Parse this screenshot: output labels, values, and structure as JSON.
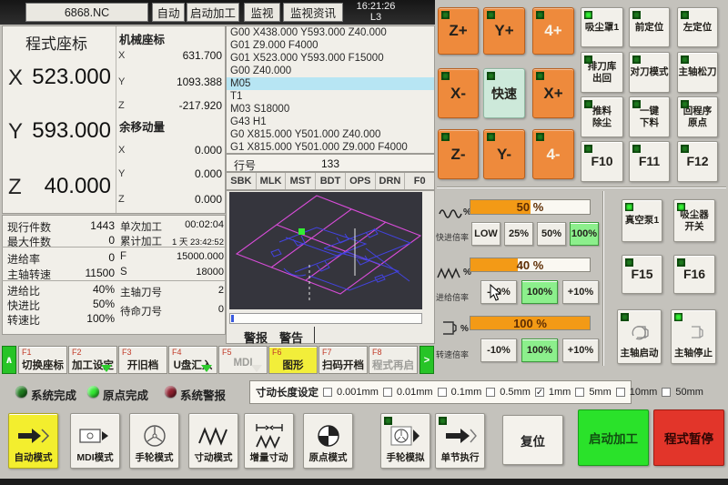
{
  "topbar": {
    "program_name": "6868.NC",
    "mode": "自动",
    "run_state": "启动加工",
    "monitor": "监视",
    "monitor_info": "监视资讯",
    "clock": "16:21:26",
    "line_label": "L3"
  },
  "coords": {
    "program": {
      "title": "程式座标",
      "rows": [
        {
          "axis": "X",
          "value": "523.000"
        },
        {
          "axis": "Y",
          "value": "593.000"
        },
        {
          "axis": "Z",
          "value": "40.000"
        }
      ]
    },
    "machine": {
      "title": "机械座标",
      "rows": [
        {
          "axis": "X",
          "value": "631.700"
        },
        {
          "axis": "Y",
          "value": "1093.388"
        },
        {
          "axis": "Z",
          "value": "-217.920"
        }
      ]
    },
    "remaining": {
      "title": "余移动量",
      "rows": [
        {
          "axis": "X",
          "value": "0.000"
        },
        {
          "axis": "Y",
          "value": "0.000"
        },
        {
          "axis": "Z",
          "value": "0.000"
        }
      ]
    }
  },
  "gcode": {
    "lines": [
      "G00 X438.000 Y593.000 Z40.000",
      "G01 Z9.000 F4000",
      "G01 X523.000 Y593.000 F15000",
      "G00 Z40.000",
      "M05",
      "T1",
      "M03 S18000",
      "G43 H1",
      "G0 X815.000 Y501.000 Z40.000",
      "G1 X815.000 Y501.000 Z9.000 F4000"
    ],
    "line_no_label": "行号",
    "line_no": "133",
    "flags": [
      "SBK",
      "MLK",
      "MST",
      "BDT",
      "OPS",
      "DRN",
      "F0"
    ]
  },
  "stats": {
    "left": [
      {
        "label": "现行件数",
        "value": "1443"
      },
      {
        "label": "最大件数",
        "value": "0"
      },
      {
        "label": "进给率",
        "value": "0"
      },
      {
        "label": "主轴转速",
        "value": "11500"
      },
      {
        "label": "进给比",
        "value": "40%"
      },
      {
        "label": "快进比",
        "value": "50%"
      },
      {
        "label": "转速比",
        "value": "100%"
      }
    ],
    "right": [
      {
        "label": "单次加工",
        "value": "00:02:04"
      },
      {
        "label": "累计加工",
        "value": "1 天 23:42:52"
      },
      {
        "label": "F",
        "value": "15000.000"
      },
      {
        "label": "S",
        "value": "18000"
      },
      {
        "label": "主轴刀号",
        "value": "2"
      },
      {
        "label": "待命刀号",
        "value": "0"
      }
    ]
  },
  "alarm": {
    "tab1": "警报",
    "tab2": "警告"
  },
  "fkeys": {
    "prev": "∧",
    "next": ">",
    "tabs": [
      {
        "fkey": "F1",
        "label": "切换座标"
      },
      {
        "fkey": "F2",
        "label": "加工设定"
      },
      {
        "fkey": "F3",
        "label": "开旧档"
      },
      {
        "fkey": "F4",
        "label": "U盘汇入"
      },
      {
        "fkey": "F5",
        "label": "MDI"
      },
      {
        "fkey": "F6",
        "label": "图形"
      },
      {
        "fkey": "F7",
        "label": "扫码开档"
      },
      {
        "fkey": "F8",
        "label": "程式再启"
      }
    ]
  },
  "leds": [
    {
      "label": "系统完成",
      "color": "#1e7a1e"
    },
    {
      "label": "原点完成",
      "color": "#33e833"
    },
    {
      "label": "系统警报",
      "color": "#8e1f2e"
    }
  ],
  "jog_length": {
    "label": "寸动长度设定",
    "options": [
      {
        "label": "0.001mm",
        "mark": ""
      },
      {
        "label": "0.01mm",
        "mark": ""
      },
      {
        "label": "0.1mm",
        "mark": ""
      },
      {
        "label": "0.5mm",
        "mark": ""
      },
      {
        "label": "1mm",
        "mark": "✓"
      },
      {
        "label": "5mm",
        "mark": ""
      },
      {
        "label": "10mm",
        "mark": ""
      },
      {
        "label": "50mm",
        "mark": ""
      }
    ]
  },
  "jog_pad": {
    "buttons": [
      {
        "label": "Z+"
      },
      {
        "label": "Y+"
      },
      {
        "label": "4+"
      },
      {
        "label": "X-"
      },
      {
        "label": "快速"
      },
      {
        "label": "X+"
      },
      {
        "label": "Z-"
      },
      {
        "label": "Y-"
      },
      {
        "label": "4-"
      }
    ]
  },
  "aux_grid": {
    "buttons": [
      {
        "label": "吸尘罩1"
      },
      {
        "label": "前定位"
      },
      {
        "label": "左定位"
      },
      {
        "label": "排刀库\n出回"
      },
      {
        "label": "对刀模式"
      },
      {
        "label": "主轴松刀"
      },
      {
        "label": "推料\n除尘"
      },
      {
        "label": "一键\n下料"
      },
      {
        "label": "回程序\n原点"
      },
      {
        "label": "F10"
      },
      {
        "label": "F11"
      },
      {
        "label": "F12"
      }
    ]
  },
  "overrides": {
    "sections": [
      {
        "label": "快进倍率",
        "unit": "%",
        "percent": 50,
        "display": "50 %",
        "buttons": [
          {
            "label": "LOW"
          },
          {
            "label": "25%"
          },
          {
            "label": "50%"
          },
          {
            "label": "100%"
          }
        ]
      },
      {
        "label": "进给倍率",
        "unit": "%",
        "percent": 40,
        "display": "40 %",
        "buttons": [
          {
            "label": "-10%"
          },
          {
            "label": "100%"
          },
          {
            "label": "+10%"
          }
        ]
      },
      {
        "label": "转速倍率",
        "unit": "%",
        "percent": 100,
        "display": "100 %",
        "buttons": [
          {
            "label": "-10%"
          },
          {
            "label": "100%"
          },
          {
            "label": "+10%"
          }
        ]
      }
    ]
  },
  "side_controls": {
    "buttons": [
      {
        "label": "真空泵1"
      },
      {
        "label": "吸尘器\n开关"
      },
      {
        "label": "F15"
      },
      {
        "label": "F16"
      },
      {
        "label": "主轴启动"
      },
      {
        "label": "主轴停止"
      }
    ]
  },
  "modes": {
    "buttons": [
      {
        "label": "自动模式"
      },
      {
        "label": "MDI模式"
      },
      {
        "label": "手轮模式"
      },
      {
        "label": "寸动模式"
      },
      {
        "label": "增量寸动"
      },
      {
        "label": "原点模式"
      },
      {
        "label": "手轮模拟"
      },
      {
        "label": "单节执行"
      }
    ]
  },
  "actions": {
    "reset": "复位",
    "start": "启动加工",
    "pause": "程式暂停"
  },
  "colors": {
    "jog_orange": "#ee8a3c",
    "rapid_mint": "#cde9da",
    "active_green": "#8cef8c",
    "start_green": "#2ae22a",
    "pause_red": "#e2352a",
    "tab_yellow": "#f2ee3a",
    "bar_orange": "#f39a16",
    "highlight_blue": "#b7e5f3"
  }
}
